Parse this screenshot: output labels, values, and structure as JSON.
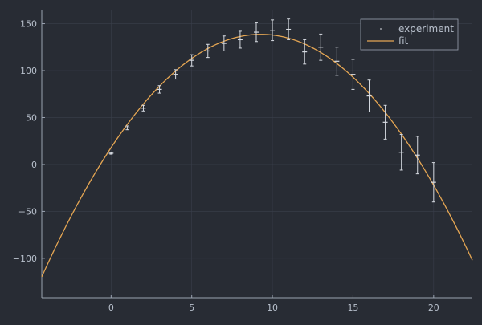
{
  "colors": {
    "background": "#282c34",
    "plot_background": "#282c34",
    "grid": "#3a3f4b",
    "axis": "#9aa3b1",
    "tick_text": "#b8c0cc",
    "experiment": "#d7dbe2",
    "fit": "#e5a653",
    "legend_border": "#9aa3b1"
  },
  "chart_data": {
    "type": "scatter",
    "title": "",
    "xlabel": "",
    "ylabel": "",
    "xlim": [
      -4.3,
      22.4
    ],
    "ylim": [
      -142,
      165
    ],
    "xticks": [
      0,
      5,
      10,
      15,
      20
    ],
    "xtick_labels": [
      "0",
      "5",
      "10",
      "15",
      "20"
    ],
    "yticks": [
      -100,
      -50,
      0,
      50,
      100,
      150
    ],
    "ytick_labels": [
      "−100",
      "−50",
      "0",
      "50",
      "100",
      "150"
    ],
    "grid": true,
    "legend": {
      "position": "top-right",
      "entries": [
        "experiment",
        "fit"
      ]
    },
    "series": [
      {
        "name": "experiment",
        "kind": "errorbar-points",
        "points": [
          {
            "x": 0,
            "y": 12,
            "err": 1
          },
          {
            "x": 1,
            "y": 39,
            "err": 2
          },
          {
            "x": 2,
            "y": 60,
            "err": 3
          },
          {
            "x": 3,
            "y": 80,
            "err": 4
          },
          {
            "x": 4,
            "y": 96,
            "err": 5
          },
          {
            "x": 5,
            "y": 111,
            "err": 6
          },
          {
            "x": 6,
            "y": 121,
            "err": 7
          },
          {
            "x": 7,
            "y": 129,
            "err": 8
          },
          {
            "x": 8,
            "y": 133,
            "err": 9
          },
          {
            "x": 9,
            "y": 141,
            "err": 10
          },
          {
            "x": 10,
            "y": 143,
            "err": 11
          },
          {
            "x": 11,
            "y": 144,
            "err": 11
          },
          {
            "x": 12,
            "y": 120,
            "err": 13
          },
          {
            "x": 13,
            "y": 125,
            "err": 14
          },
          {
            "x": 14,
            "y": 110,
            "err": 15
          },
          {
            "x": 15,
            "y": 96,
            "err": 16
          },
          {
            "x": 16,
            "y": 73,
            "err": 17
          },
          {
            "x": 17,
            "y": 45,
            "err": 18
          },
          {
            "x": 18,
            "y": 13,
            "err": 19
          },
          {
            "x": 19,
            "y": 10,
            "err": 20
          },
          {
            "x": 20,
            "y": -19,
            "err": 21
          }
        ]
      },
      {
        "name": "fit",
        "kind": "line",
        "model": "quadratic",
        "coefficients": {
          "a": -1.4,
          "b": 26.0,
          "c": 18.0
        }
      }
    ]
  }
}
